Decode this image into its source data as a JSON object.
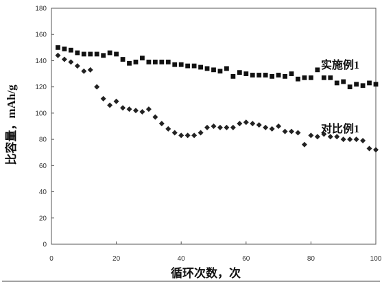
{
  "chart_data": {
    "type": "scatter",
    "xlabel": "循环次数，次",
    "ylabel": "比容量，mAh/g",
    "xlim": [
      0,
      100
    ],
    "ylim": [
      0,
      180
    ],
    "x_ticks": [
      "0",
      "20",
      "40",
      "60",
      "80",
      "100"
    ],
    "y_ticks": [
      "0",
      "20",
      "40",
      "60",
      "80",
      "100",
      "120",
      "140",
      "160",
      "180"
    ],
    "grid": false,
    "series": [
      {
        "name": "实施例1",
        "marker": "square",
        "color": "#111111",
        "x": [
          2,
          4,
          6,
          8,
          10,
          12,
          14,
          16,
          18,
          20,
          22,
          24,
          26,
          28,
          30,
          32,
          34,
          36,
          38,
          40,
          42,
          44,
          46,
          48,
          50,
          52,
          54,
          56,
          58,
          60,
          62,
          64,
          66,
          68,
          70,
          72,
          74,
          76,
          78,
          80,
          82,
          84,
          86,
          88,
          90,
          92,
          94,
          96,
          98,
          100
        ],
        "y": [
          150,
          149,
          148,
          146,
          145,
          145,
          145,
          144,
          146,
          145,
          141,
          138,
          139,
          142,
          139,
          139,
          139,
          139,
          137,
          137,
          136,
          136,
          135,
          134,
          133,
          132,
          134,
          128,
          131,
          130,
          129,
          129,
          129,
          128,
          129,
          128,
          130,
          126,
          127,
          127,
          133,
          127,
          127,
          123,
          124,
          120,
          122,
          121,
          123,
          122
        ]
      },
      {
        "name": "对比例1",
        "marker": "diamond",
        "color": "#222222",
        "x": [
          2,
          4,
          6,
          8,
          10,
          12,
          14,
          16,
          18,
          20,
          22,
          24,
          26,
          28,
          30,
          32,
          34,
          36,
          38,
          40,
          42,
          44,
          46,
          48,
          50,
          52,
          54,
          56,
          58,
          60,
          62,
          64,
          66,
          68,
          70,
          72,
          74,
          76,
          78,
          80,
          82,
          84,
          86,
          88,
          90,
          92,
          94,
          96,
          98,
          100
        ],
        "y": [
          144,
          141,
          139,
          136,
          132,
          133,
          120,
          111,
          106,
          109,
          104,
          103,
          102,
          101,
          103,
          97,
          92,
          88,
          85,
          83,
          83,
          83,
          85,
          89,
          90,
          89,
          89,
          89,
          92,
          93,
          92,
          91,
          89,
          88,
          90,
          86,
          86,
          85,
          76,
          83,
          82,
          84,
          82,
          82,
          80,
          80,
          80,
          79,
          73,
          72
        ]
      }
    ],
    "legend_labels": [
      "实施例1",
      "对比例1"
    ],
    "legend_placement": "inline-right"
  }
}
